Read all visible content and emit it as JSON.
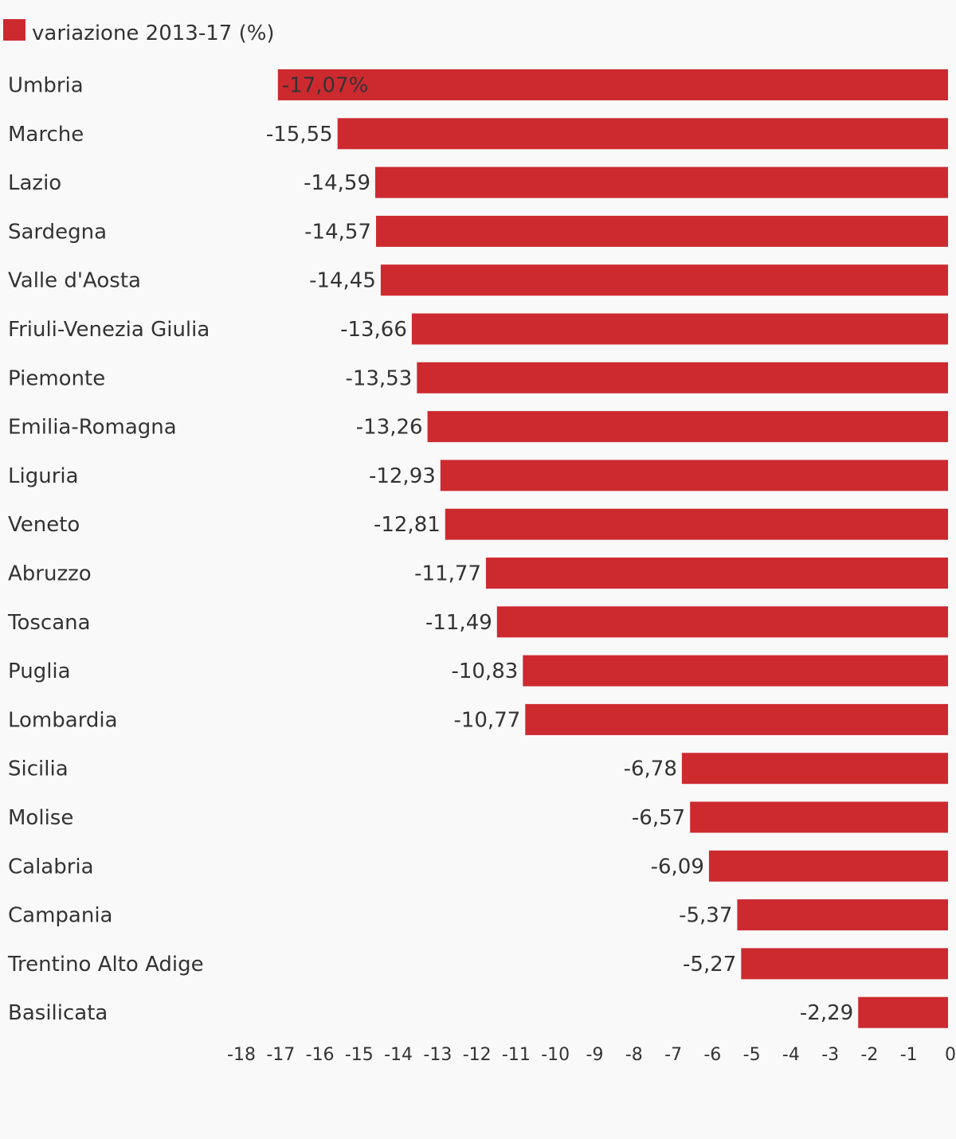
{
  "chart_data": {
    "type": "bar",
    "orientation": "horizontal",
    "legend": {
      "position": "top-left",
      "entries": [
        {
          "label": "variazione 2013-17 (%)",
          "color": "#cd2a30"
        }
      ]
    },
    "series": [
      {
        "name": "variazione 2013-17 (%)",
        "color": "#cd2a30",
        "values": [
          -17.07,
          -15.55,
          -14.59,
          -14.57,
          -14.45,
          -13.66,
          -13.53,
          -13.26,
          -12.93,
          -12.81,
          -11.77,
          -11.49,
          -10.83,
          -10.77,
          -6.78,
          -6.57,
          -6.09,
          -5.37,
          -5.27,
          -2.29
        ]
      }
    ],
    "categories": [
      "Umbria",
      "Marche",
      "Lazio",
      "Sardegna",
      "Valle d'Aosta",
      "Friuli-Venezia Giulia",
      "Piemonte",
      "Emilia-Romagna",
      "Liguria",
      "Veneto",
      "Abruzzo",
      "Toscana",
      "Puglia",
      "Lombardia",
      "Sicilia",
      "Molise",
      "Calabria",
      "Campania",
      "Trentino Alto Adige",
      "Basilicata"
    ],
    "value_labels": [
      "-17,07%",
      "-15,55",
      "-14,59",
      "-14,57",
      "-14,45",
      "-13,66",
      "-13,53",
      "-13,26",
      "-12,93",
      "-12,81",
      "-11,77",
      "-11,49",
      "-10,83",
      "-10,77",
      "-6,78",
      "-6,57",
      "-6,09",
      "-5,37",
      "-5,27",
      "-2,29"
    ],
    "x_ticks": [
      "-18",
      "-17",
      "-16",
      "-15",
      "-14",
      "-13",
      "-12",
      "-11",
      "-10",
      "-9",
      "-8",
      "-7",
      "-6",
      "-5",
      "-4",
      "-3",
      "-2",
      "-1",
      "0"
    ],
    "xlim": [
      -18,
      0
    ],
    "grid": false
  }
}
